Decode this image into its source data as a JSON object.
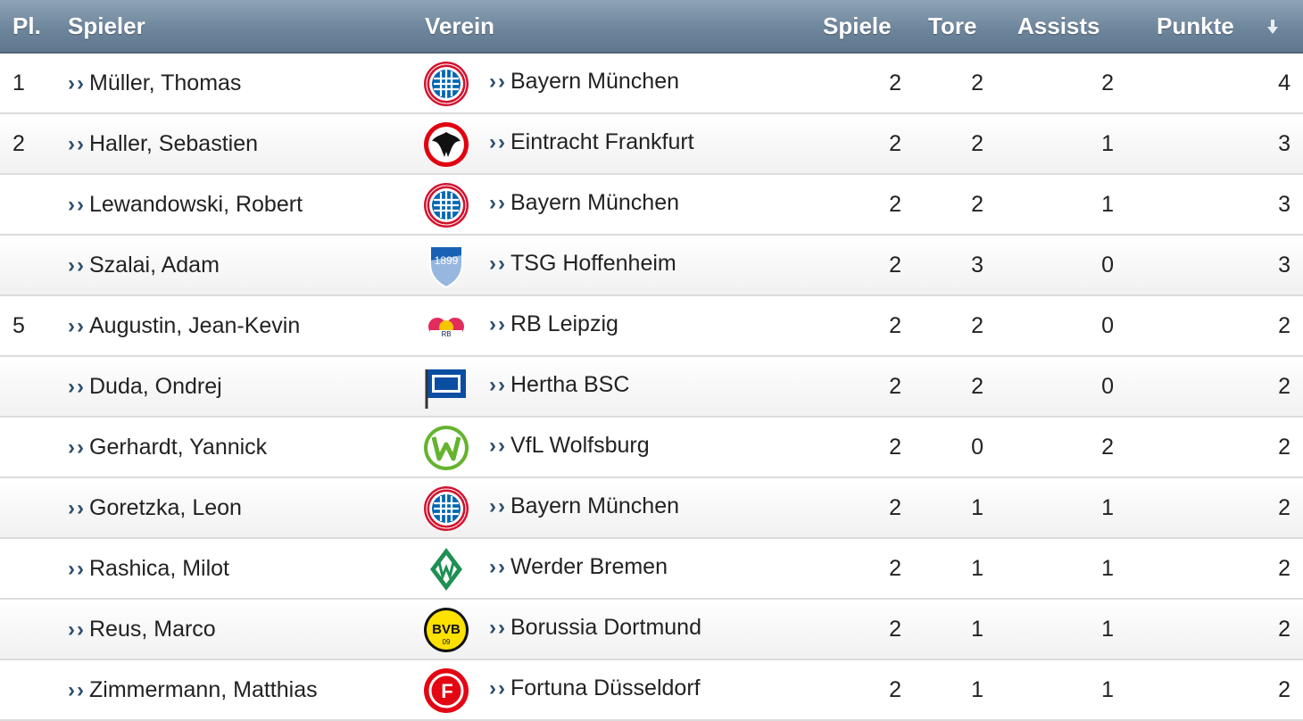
{
  "header": {
    "pl": "Pl.",
    "spieler": "Spieler",
    "verein": "Verein",
    "spiele": "Spiele",
    "tore": "Tore",
    "assists": "Assists",
    "punkte": "Punkte",
    "sort_icon": "sort-down-arrow-icon"
  },
  "colors": {
    "header_bg": "#6e869c",
    "link_arrow": "#2d4f6e",
    "row_border": "#dcdcdc"
  },
  "rows": [
    {
      "pl": "1",
      "spieler": "Müller, Thomas",
      "verein": "Bayern München",
      "logo": "bayern-logo-icon",
      "spiele": "2",
      "tore": "2",
      "assists": "2",
      "punkte": "4"
    },
    {
      "pl": "2",
      "spieler": "Haller, Sebastien",
      "verein": "Eintracht Frankfurt",
      "logo": "frankfurt-logo-icon",
      "spiele": "2",
      "tore": "2",
      "assists": "1",
      "punkte": "3"
    },
    {
      "pl": "",
      "spieler": "Lewandowski, Robert",
      "verein": "Bayern München",
      "logo": "bayern-logo-icon",
      "spiele": "2",
      "tore": "2",
      "assists": "1",
      "punkte": "3"
    },
    {
      "pl": "",
      "spieler": "Szalai, Adam",
      "verein": "TSG Hoffenheim",
      "logo": "hoffenheim-logo-icon",
      "spiele": "2",
      "tore": "3",
      "assists": "0",
      "punkte": "3"
    },
    {
      "pl": "5",
      "spieler": "Augustin, Jean-Kevin",
      "verein": "RB Leipzig",
      "logo": "leipzig-logo-icon",
      "spiele": "2",
      "tore": "2",
      "assists": "0",
      "punkte": "2"
    },
    {
      "pl": "",
      "spieler": "Duda, Ondrej",
      "verein": "Hertha BSC",
      "logo": "hertha-logo-icon",
      "spiele": "2",
      "tore": "2",
      "assists": "0",
      "punkte": "2"
    },
    {
      "pl": "",
      "spieler": "Gerhardt, Yannick",
      "verein": "VfL Wolfsburg",
      "logo": "wolfsburg-logo-icon",
      "spiele": "2",
      "tore": "0",
      "assists": "2",
      "punkte": "2"
    },
    {
      "pl": "",
      "spieler": "Goretzka, Leon",
      "verein": "Bayern München",
      "logo": "bayern-logo-icon",
      "spiele": "2",
      "tore": "1",
      "assists": "1",
      "punkte": "2"
    },
    {
      "pl": "",
      "spieler": "Rashica, Milot",
      "verein": "Werder Bremen",
      "logo": "bremen-logo-icon",
      "spiele": "2",
      "tore": "1",
      "assists": "1",
      "punkte": "2"
    },
    {
      "pl": "",
      "spieler": "Reus, Marco",
      "verein": "Borussia Dortmund",
      "logo": "dortmund-logo-icon",
      "spiele": "2",
      "tore": "1",
      "assists": "1",
      "punkte": "2"
    },
    {
      "pl": "",
      "spieler": "Zimmermann, Matthias",
      "verein": "Fortuna Düsseldorf",
      "logo": "duesseldorf-logo-icon",
      "spiele": "2",
      "tore": "1",
      "assists": "1",
      "punkte": "2"
    }
  ]
}
